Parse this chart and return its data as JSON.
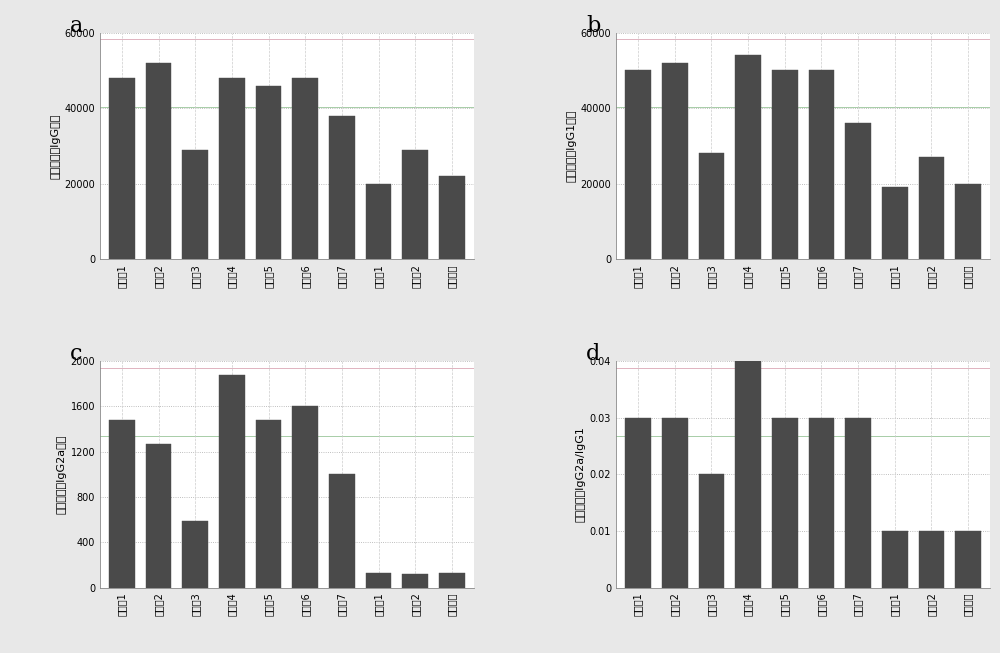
{
  "categories": [
    "实验例1",
    "实验例2",
    "实验例3",
    "实验例4",
    "实验例5",
    "实验例6",
    "实验例7",
    "对比例1",
    "对比例2",
    "阳性对照"
  ],
  "a_values": [
    48000,
    52000,
    29000,
    48000,
    46000,
    48000,
    38000,
    20000,
    29000,
    22000
  ],
  "b_values": [
    50000,
    52000,
    28000,
    54000,
    50000,
    50000,
    36000,
    19000,
    27000,
    20000
  ],
  "c_values": [
    1480,
    1270,
    590,
    1880,
    1480,
    1600,
    1000,
    130,
    120,
    130
  ],
  "d_values": [
    0.03,
    0.03,
    0.02,
    0.04,
    0.03,
    0.03,
    0.03,
    0.01,
    0.01,
    0.01
  ],
  "a_ylabel": "多糖特异性IgG滴度",
  "b_ylabel": "多糖特异性IgG1滴度",
  "c_ylabel": "多糖特异性IgG2a滴度",
  "d_ylabel": "多糖特异性IgG2a/IgG1",
  "a_ylim": [
    0,
    60000
  ],
  "b_ylim": [
    0,
    60000
  ],
  "c_ylim": [
    0,
    2000
  ],
  "d_ylim": [
    0,
    0.04
  ],
  "a_yticks": [
    0,
    20000,
    40000,
    60000
  ],
  "b_yticks": [
    0,
    20000,
    40000,
    60000
  ],
  "c_yticks": [
    0,
    400,
    800,
    1200,
    1600,
    2000
  ],
  "d_yticks": [
    0,
    0.01,
    0.02,
    0.03,
    0.04
  ],
  "bar_color": "#4a4a4a",
  "bar_edge_color": "#4a4a4a",
  "bg_color": "#ffffff",
  "fig_bg_color": "#e8e8e8",
  "grid_color_dot": "#aaaaaa",
  "grid_color_pink": "#d8a0b0",
  "grid_color_green": "#90c090",
  "label_a": "a",
  "label_b": "b",
  "label_c": "c",
  "label_d": "d"
}
